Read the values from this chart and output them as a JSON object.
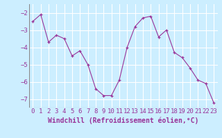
{
  "x": [
    0,
    1,
    2,
    3,
    4,
    5,
    6,
    7,
    8,
    9,
    10,
    11,
    12,
    13,
    14,
    15,
    16,
    17,
    18,
    19,
    20,
    21,
    22,
    23
  ],
  "y": [
    -2.5,
    -2.1,
    -3.7,
    -3.3,
    -3.5,
    -4.5,
    -4.2,
    -5.0,
    -6.4,
    -6.8,
    -6.8,
    -5.9,
    -4.0,
    -2.8,
    -2.3,
    -2.2,
    -3.4,
    -3.0,
    -4.3,
    -4.6,
    -5.2,
    -5.9,
    -6.1,
    -7.2
  ],
  "line_color": "#993399",
  "marker_color": "#993399",
  "bg_color": "#cceeff",
  "grid_color": "#ffffff",
  "xlabel": "Windchill (Refroidissement éolien,°C)",
  "xlabel_color": "#993399",
  "xlabel_fontsize": 7,
  "tick_color": "#993399",
  "tick_fontsize": 6.5,
  "ylim": [
    -7.5,
    -1.5
  ],
  "yticks": [
    -7,
    -6,
    -5,
    -4,
    -3,
    -2
  ],
  "xlim": [
    -0.5,
    23.5
  ]
}
